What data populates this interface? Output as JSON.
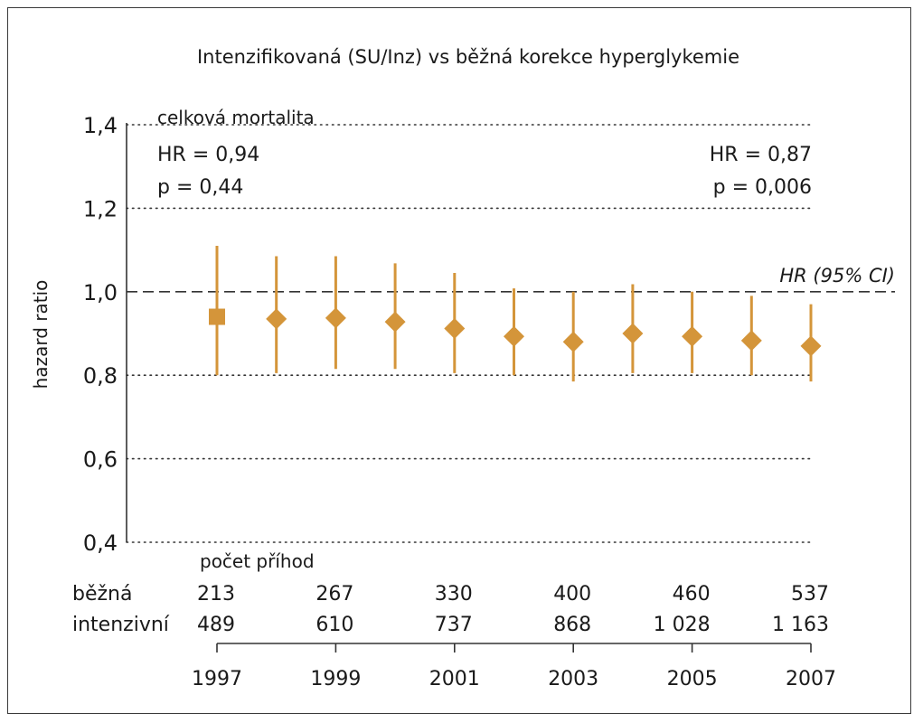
{
  "chart_data": {
    "type": "scatter",
    "title": "Intenzifikovaná (SU/Inz) vs běžná korekce hyperglykemie",
    "ylabel": "hazard ratio",
    "xlabel": "",
    "ylim": [
      0.4,
      1.4
    ],
    "yticks": [
      "1,4",
      "1,2",
      "1,0",
      "0,8",
      "0,6",
      "0,4"
    ],
    "ytick_values": [
      1.4,
      1.2,
      1.0,
      0.8,
      0.6,
      0.4
    ],
    "xticks": [
      "1997",
      "1999",
      "2001",
      "2003",
      "2005",
      "2007"
    ],
    "xtick_values": [
      1997,
      1999,
      2001,
      2003,
      2005,
      2007
    ],
    "grid": "horizontal-dotted",
    "reference_line": {
      "y": 1.0,
      "label": "HR (95% CI)"
    },
    "panel_label": "celková mortalita",
    "annotations": {
      "left": {
        "hr": "HR = 0,94",
        "p": "p = 0,44"
      },
      "right": {
        "hr": "HR = 0,87",
        "p": "p = 0,006"
      }
    },
    "points": [
      {
        "x": 1997,
        "y": 0.94,
        "low": 0.8,
        "high": 1.11,
        "marker": "square"
      },
      {
        "x": 1998,
        "y": 0.935,
        "low": 0.805,
        "high": 1.085,
        "marker": "diamond"
      },
      {
        "x": 1999,
        "y": 0.937,
        "low": 0.815,
        "high": 1.085,
        "marker": "diamond"
      },
      {
        "x": 2000,
        "y": 0.928,
        "low": 0.815,
        "high": 1.068,
        "marker": "diamond"
      },
      {
        "x": 2001,
        "y": 0.912,
        "low": 0.805,
        "high": 1.045,
        "marker": "diamond"
      },
      {
        "x": 2002,
        "y": 0.893,
        "low": 0.8,
        "high": 1.008,
        "marker": "diamond"
      },
      {
        "x": 2003,
        "y": 0.88,
        "low": 0.785,
        "high": 1.0,
        "marker": "diamond"
      },
      {
        "x": 2004,
        "y": 0.9,
        "low": 0.805,
        "high": 1.018,
        "marker": "diamond"
      },
      {
        "x": 2005,
        "y": 0.893,
        "low": 0.805,
        "high": 1.0,
        "marker": "diamond"
      },
      {
        "x": 2006,
        "y": 0.883,
        "low": 0.8,
        "high": 0.99,
        "marker": "diamond"
      },
      {
        "x": 2007,
        "y": 0.87,
        "low": 0.785,
        "high": 0.97,
        "marker": "diamond"
      }
    ],
    "events_table": {
      "heading": "počet příhod",
      "rows": [
        {
          "label": "běžná",
          "values": [
            "213",
            "267",
            "330",
            "400",
            "460",
            "537"
          ]
        },
        {
          "label": "intenzivní",
          "values": [
            "489",
            "610",
            "737",
            "868",
            "1 028",
            "1 163"
          ]
        }
      ]
    },
    "colors": {
      "marker": "#d4953a",
      "axis": "#333333",
      "grid": "#333333"
    }
  }
}
